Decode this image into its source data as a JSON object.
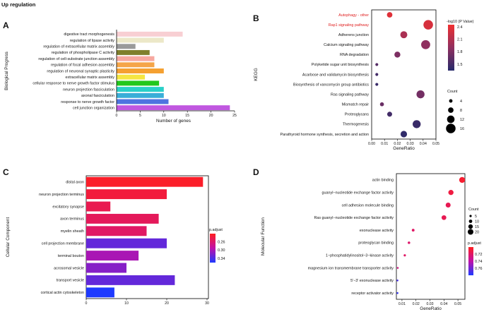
{
  "header": {
    "title": "Up regulation"
  },
  "chart_data": [
    {
      "panel": "A",
      "type": "bar",
      "orientation": "horizontal",
      "ylabel": "Biological Progress",
      "xlabel": "Number of genes",
      "xlim": [
        0,
        25
      ],
      "xticks": [
        0,
        5,
        10,
        15,
        20,
        25
      ],
      "categories": [
        "digestive tract morphogenesis",
        "regulation of lipase activity",
        "regulation of extracellular matrix assembly",
        "regulation of phospholipase C activity",
        "regulation of cell-substrate junction assembly",
        "regulation of focal adhesion assembly",
        "regulation of neuronal synaptic plasticity",
        "extracellular matrix assembly",
        "cellular response to nerve growth factor stimulus",
        "neuron projection fasciculation",
        "axonal fasciculation",
        "response to nerve growth factor",
        "cell junction organization"
      ],
      "values": [
        14,
        10,
        4,
        7,
        8,
        8,
        10,
        6,
        9,
        10,
        10,
        11,
        24
      ],
      "colors": [
        "#f8cfd3",
        "#ece8c8",
        "#9a9a9a",
        "#7f7f2c",
        "#f7a8a0",
        "#f5a548",
        "#f5a030",
        "#f5e642",
        "#22c81c",
        "#2ad0c8",
        "#3aaed8",
        "#4e74e0",
        "#c058e0"
      ]
    },
    {
      "panel": "B",
      "type": "scatter",
      "ylabel": "KEGG",
      "xlabel": "GeneRatio",
      "xlim": [
        0,
        0.05
      ],
      "xticks": [
        "0.00",
        "0.01",
        "0.02",
        "0.03",
        "0.04",
        "0.05"
      ],
      "categories": [
        "Autophagy - other",
        "Rap1 signaling pathway",
        "Adherens junction",
        "Calcium signaling pathway",
        "RNA degradation",
        "Polyketide sugar unit biosynthesis",
        "Acarbose and validamycin biosynthesis",
        "Biosynthesis of vancomycin group antibiotics",
        "Ras signaling pathway",
        "Mismatch repair",
        "Proteoglycans",
        "Thermogenesis",
        "Parathyroid hormone synthesis, secretion and action"
      ],
      "highlighted": [
        "Autophagy - other",
        "Rap1 signaling pathway"
      ],
      "x": [
        0.014,
        0.044,
        0.025,
        0.042,
        0.02,
        0.004,
        0.004,
        0.004,
        0.038,
        0.008,
        0.014,
        0.035,
        0.025
      ],
      "count": [
        8,
        16,
        11,
        15,
        9,
        3,
        3,
        3,
        13,
        5,
        7,
        13,
        10
      ],
      "neg_log10_p": [
        2.35,
        2.3,
        2.05,
        1.9,
        1.8,
        1.6,
        1.5,
        1.45,
        1.75,
        1.7,
        1.5,
        1.45,
        1.4
      ],
      "color_legend": {
        "title": "-log10 (P Value)",
        "ticks": [
          "2.4",
          "2.1",
          "1.8",
          "1.5"
        ],
        "range": [
          1.35,
          2.45
        ]
      },
      "size_legend": {
        "title": "Count",
        "values": [
          4,
          8,
          12,
          16
        ]
      }
    },
    {
      "panel": "C",
      "type": "bar",
      "orientation": "horizontal",
      "ylabel": "Cellular Component",
      "xlabel": "",
      "xlim": [
        0,
        30
      ],
      "xticks": [
        0,
        10,
        20,
        30
      ],
      "categories": [
        "distal axon",
        "neuron projection terminus",
        "excitatory synapse",
        "axon terminus",
        "myelin sheath",
        "cell projection membrane",
        "terminal bouton",
        "acrosomal vesicle",
        "transport vesicle",
        "cortical actin cytoskeleton"
      ],
      "values": [
        29,
        20,
        6,
        18,
        15,
        20,
        13,
        10,
        22,
        7
      ],
      "p_adjust": [
        0.225,
        0.235,
        0.245,
        0.25,
        0.255,
        0.33,
        0.3,
        0.315,
        0.33,
        0.36
      ],
      "color_legend": {
        "title": "p.adjust",
        "ticks": [
          "0.26",
          "0.30",
          "0.34"
        ],
        "range": [
          0.22,
          0.36
        ]
      }
    },
    {
      "panel": "D",
      "type": "scatter",
      "ylabel": "Molecular Function",
      "xlabel": "GeneRatio",
      "xlim": [
        0.006,
        0.055
      ],
      "xticks": [
        "0.01",
        "0.02",
        "0.03",
        "0.04",
        "0.05"
      ],
      "categories": [
        "actin binding",
        "guanyl−nucleotide exchange factor activity",
        "cell adhesion molecule binding",
        "Ras guanyl−nucleotide exchange factor activity",
        "exonuclease activity",
        "proteoglycan binding",
        "1−phosphatidylinositol−3−kinase activity",
        "magnesium ion transmembrane transporter activity",
        "5′−3′ exonuclease activity",
        "receptor activator activity"
      ],
      "x": [
        0.053,
        0.045,
        0.043,
        0.04,
        0.018,
        0.015,
        0.012,
        0.007,
        0.0068,
        0.0068
      ],
      "count": [
        21,
        18,
        17,
        16,
        7,
        6,
        5,
        3,
        3,
        3
      ],
      "p_adjust": [
        0.705,
        0.71,
        0.715,
        0.715,
        0.72,
        0.722,
        0.72,
        0.728,
        0.77,
        0.775
      ],
      "size_legend": {
        "title": "Count",
        "values": [
          5,
          10,
          15,
          20
        ]
      },
      "color_legend": {
        "title": "p.adjust",
        "ticks": [
          "0.72",
          "0.74",
          "0.76"
        ],
        "range": [
          0.7,
          0.78
        ]
      }
    }
  ]
}
